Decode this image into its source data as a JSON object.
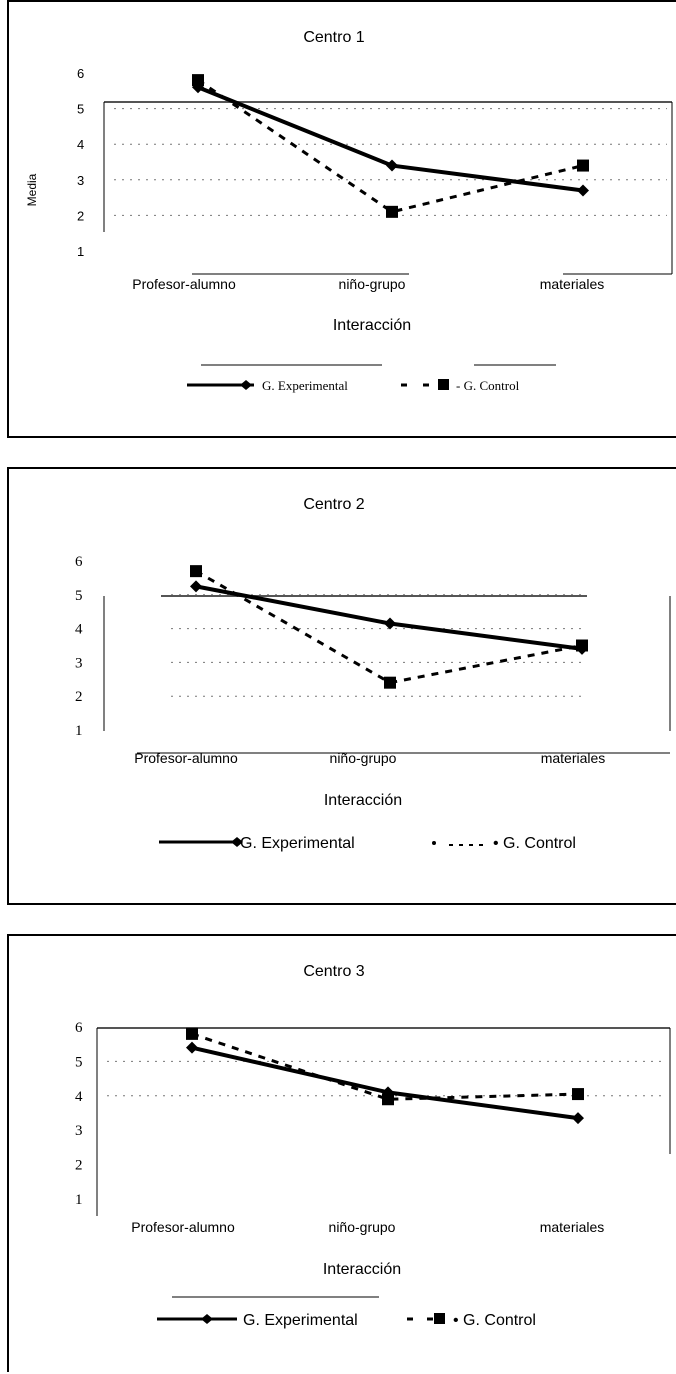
{
  "chart_data": [
    {
      "type": "line",
      "title": "Centro 1",
      "xlabel": "Interacción",
      "ylabel": "Media",
      "categories": [
        "Profesor-alumno",
        "niño-grupo",
        "materiales"
      ],
      "y_ticks": [
        "1",
        "2",
        "3",
        "4",
        "5",
        "6"
      ],
      "ylim": [
        1,
        6
      ],
      "grid": true,
      "legend_position": "bottom",
      "series": [
        {
          "name": "G. Experimental",
          "values": [
            5.6,
            3.4,
            2.7
          ],
          "marker": "diamond",
          "style": "solid",
          "color": "#000000"
        },
        {
          "name": "G. Control",
          "values": [
            5.8,
            2.1,
            3.4
          ],
          "marker": "square",
          "style": "dashed",
          "color": "#000000"
        }
      ],
      "legend_labels": [
        "G. Experimental",
        "- G. Control"
      ]
    },
    {
      "type": "line",
      "title": "Centro 2",
      "xlabel": "Interacción",
      "ylabel": "",
      "categories": [
        "Profesor-alumno",
        "niño-grupo",
        "materiales"
      ],
      "y_ticks": [
        "1",
        "2",
        "3",
        "4",
        "5",
        "6"
      ],
      "ylim": [
        1,
        6
      ],
      "grid": true,
      "legend_position": "bottom",
      "series": [
        {
          "name": "G. Experimental",
          "values": [
            5.25,
            4.15,
            3.4
          ],
          "marker": "diamond",
          "style": "solid",
          "color": "#000000"
        },
        {
          "name": "G. Control",
          "values": [
            5.7,
            2.4,
            3.5
          ],
          "marker": "square",
          "style": "dashed",
          "color": "#000000"
        }
      ],
      "legend_labels": [
        "G. Experimental",
        "• G. Control"
      ]
    },
    {
      "type": "line",
      "title": "Centro 3",
      "xlabel": "Interacción",
      "ylabel": "",
      "categories": [
        "Profesor-alumno",
        "niño-grupo",
        "materiales"
      ],
      "y_ticks": [
        "1",
        "2",
        "3",
        "4",
        "5",
        "6"
      ],
      "ylim": [
        1,
        6
      ],
      "grid": true,
      "legend_position": "bottom",
      "series": [
        {
          "name": "G. Experimental",
          "values": [
            5.4,
            4.1,
            3.35
          ],
          "marker": "diamond",
          "style": "solid",
          "color": "#000000"
        },
        {
          "name": "G. Control",
          "values": [
            5.8,
            3.9,
            4.05
          ],
          "marker": "square",
          "style": "dashed",
          "color": "#000000"
        }
      ],
      "legend_labels": [
        "G. Experimental",
        "• G. Control"
      ]
    }
  ]
}
